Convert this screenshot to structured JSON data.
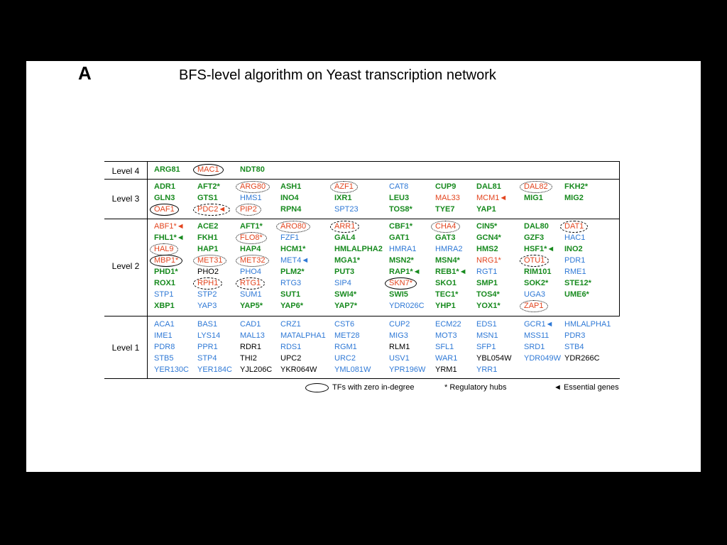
{
  "figure": {
    "panel_letter": "A",
    "title": "BFS-level algorithm on Yeast transcription network"
  },
  "levels": [
    {
      "label": "Level 4",
      "genes": [
        {
          "name": "ARG81",
          "c": "g",
          "r": 0,
          "col": 0
        },
        {
          "name": "MAC1",
          "c": "r",
          "r": 0,
          "col": 1,
          "ring": "solid"
        },
        {
          "name": "NDT80",
          "c": "g",
          "r": 0,
          "col": 2
        }
      ]
    },
    {
      "label": "Level 3",
      "genes": [
        {
          "name": "ADR1",
          "c": "g",
          "r": 0,
          "col": 0
        },
        {
          "name": "AFT2*",
          "c": "g",
          "r": 0,
          "col": 1
        },
        {
          "name": "ARG80",
          "c": "r",
          "r": 0,
          "col": 2,
          "ring": "dot"
        },
        {
          "name": "ASH1",
          "c": "g",
          "r": 0,
          "col": 3
        },
        {
          "name": "AZF1",
          "c": "r",
          "r": 0,
          "col": 4,
          "ring": "dot"
        },
        {
          "name": "CAT8",
          "c": "b",
          "r": 0,
          "col": 5
        },
        {
          "name": "CUP9",
          "c": "g",
          "r": 0,
          "col": 6
        },
        {
          "name": "DAL81",
          "c": "g",
          "r": 0,
          "col": 7
        },
        {
          "name": "DAL82",
          "c": "r",
          "r": 0,
          "col": 8,
          "ring": "dot"
        },
        {
          "name": "FKH2*",
          "c": "g",
          "r": 0,
          "col": 9
        },
        {
          "name": "GLN3",
          "c": "g",
          "r": 1,
          "col": 0
        },
        {
          "name": "GTS1",
          "c": "g",
          "r": 1,
          "col": 1
        },
        {
          "name": "HMS1",
          "c": "b",
          "r": 1,
          "col": 2
        },
        {
          "name": "INO4",
          "c": "g",
          "r": 1,
          "col": 3
        },
        {
          "name": "IXR1",
          "c": "g",
          "r": 1,
          "col": 4
        },
        {
          "name": "LEU3",
          "c": "g",
          "r": 1,
          "col": 5
        },
        {
          "name": "MAL33",
          "c": "r",
          "r": 1,
          "col": 6
        },
        {
          "name": "MCM1◄",
          "c": "r",
          "r": 1,
          "col": 7
        },
        {
          "name": "MIG1",
          "c": "g",
          "r": 1,
          "col": 8
        },
        {
          "name": "MIG2",
          "c": "g",
          "r": 1,
          "col": 9
        },
        {
          "name": "OAF1",
          "c": "r",
          "r": 2,
          "col": 0,
          "ring": "solid"
        },
        {
          "name": "PDC2◄",
          "c": "r",
          "r": 2,
          "col": 1,
          "ring": "dash"
        },
        {
          "name": "PIP2",
          "c": "r",
          "r": 2,
          "col": 2,
          "ring": "dot"
        },
        {
          "name": "RPN4",
          "c": "g",
          "r": 2,
          "col": 3
        },
        {
          "name": "SPT23",
          "c": "b",
          "r": 2,
          "col": 4
        },
        {
          "name": "TOS8*",
          "c": "g",
          "r": 2,
          "col": 5
        },
        {
          "name": "TYE7",
          "c": "g",
          "r": 2,
          "col": 6
        },
        {
          "name": "YAP1",
          "c": "g",
          "r": 2,
          "col": 7
        }
      ]
    },
    {
      "label": "Level 2",
      "genes": [
        {
          "name": "ABF1*◄",
          "c": "r",
          "r": 0,
          "col": 0
        },
        {
          "name": "ACE2",
          "c": "g",
          "r": 0,
          "col": 1
        },
        {
          "name": "AFT1*",
          "c": "g",
          "r": 0,
          "col": 2
        },
        {
          "name": "ARO80",
          "c": "r",
          "r": 0,
          "col": 3,
          "ring": "dot"
        },
        {
          "name": "ARR1",
          "c": "r",
          "r": 0,
          "col": 4,
          "ring": "dash"
        },
        {
          "name": "CBF1*",
          "c": "g",
          "r": 0,
          "col": 5
        },
        {
          "name": "CHA4",
          "c": "r",
          "r": 0,
          "col": 6,
          "ring": "dot"
        },
        {
          "name": "CIN5*",
          "c": "g",
          "r": 0,
          "col": 7
        },
        {
          "name": "DAL80",
          "c": "g",
          "r": 0,
          "col": 8
        },
        {
          "name": "DAT1",
          "c": "r",
          "r": 0,
          "col": 9,
          "ring": "dash"
        },
        {
          "name": "FHL1*◄",
          "c": "g",
          "r": 1,
          "col": 0
        },
        {
          "name": "FKH1",
          "c": "g",
          "r": 1,
          "col": 1
        },
        {
          "name": "FLO8*",
          "c": "r",
          "r": 1,
          "col": 2,
          "ring": "dot"
        },
        {
          "name": "FZF1",
          "c": "b",
          "r": 1,
          "col": 3
        },
        {
          "name": "GAL4",
          "c": "g",
          "r": 1,
          "col": 4
        },
        {
          "name": "GAT1",
          "c": "g",
          "r": 1,
          "col": 5
        },
        {
          "name": "GAT3",
          "c": "g",
          "r": 1,
          "col": 6
        },
        {
          "name": "GCN4*",
          "c": "g",
          "r": 1,
          "col": 7
        },
        {
          "name": "GZF3",
          "c": "g",
          "r": 1,
          "col": 8
        },
        {
          "name": "HAC1",
          "c": "b",
          "r": 1,
          "col": 9
        },
        {
          "name": "HAL9",
          "c": "r",
          "r": 2,
          "col": 0,
          "ring": "dot"
        },
        {
          "name": "HAP1",
          "c": "g",
          "r": 2,
          "col": 1
        },
        {
          "name": "HAP4",
          "c": "g",
          "r": 2,
          "col": 2
        },
        {
          "name": "HCM1*",
          "c": "g",
          "r": 2,
          "col": 3
        },
        {
          "name": "HMLALPHA2",
          "c": "g",
          "r": 2,
          "col": 4
        },
        {
          "name": "HMRA1",
          "c": "b",
          "r": 2,
          "col": 5
        },
        {
          "name": "HMRA2",
          "c": "b",
          "r": 2,
          "col": 6
        },
        {
          "name": "HMS2",
          "c": "g",
          "r": 2,
          "col": 7
        },
        {
          "name": "HSF1*◄",
          "c": "g",
          "r": 2,
          "col": 8
        },
        {
          "name": "INO2",
          "c": "g",
          "r": 2,
          "col": 9
        },
        {
          "name": "MBP1*",
          "c": "r",
          "r": 3,
          "col": 0,
          "ring": "solid"
        },
        {
          "name": "MET31",
          "c": "r",
          "r": 3,
          "col": 1,
          "ring": "dot"
        },
        {
          "name": "MET32",
          "c": "r",
          "r": 3,
          "col": 2,
          "ring": "dot"
        },
        {
          "name": "MET4◄",
          "c": "b",
          "r": 3,
          "col": 3
        },
        {
          "name": "MGA1*",
          "c": "g",
          "r": 3,
          "col": 4
        },
        {
          "name": "MSN2*",
          "c": "g",
          "r": 3,
          "col": 5
        },
        {
          "name": "MSN4*",
          "c": "g",
          "r": 3,
          "col": 6
        },
        {
          "name": "NRG1*",
          "c": "r",
          "r": 3,
          "col": 7
        },
        {
          "name": "OTU1",
          "c": "r",
          "r": 3,
          "col": 8,
          "ring": "dash"
        },
        {
          "name": "PDR1",
          "c": "b",
          "r": 3,
          "col": 9
        },
        {
          "name": "PHD1*",
          "c": "g",
          "r": 4,
          "col": 0
        },
        {
          "name": "PHO2",
          "c": "k",
          "r": 4,
          "col": 1
        },
        {
          "name": "PHO4",
          "c": "b",
          "r": 4,
          "col": 2
        },
        {
          "name": "PLM2*",
          "c": "g",
          "r": 4,
          "col": 3
        },
        {
          "name": "PUT3",
          "c": "g",
          "r": 4,
          "col": 4
        },
        {
          "name": "RAP1*◄",
          "c": "g",
          "r": 4,
          "col": 5
        },
        {
          "name": "REB1*◄",
          "c": "g",
          "r": 4,
          "col": 6
        },
        {
          "name": "RGT1",
          "c": "b",
          "r": 4,
          "col": 7
        },
        {
          "name": "RIM101",
          "c": "g",
          "r": 4,
          "col": 8
        },
        {
          "name": "RME1",
          "c": "b",
          "r": 4,
          "col": 9
        },
        {
          "name": "ROX1",
          "c": "g",
          "r": 5,
          "col": 0
        },
        {
          "name": "RPH1",
          "c": "r",
          "r": 5,
          "col": 1,
          "ring": "dash"
        },
        {
          "name": "RTG1",
          "c": "r",
          "r": 5,
          "col": 2,
          "ring": "dash"
        },
        {
          "name": "RTG3",
          "c": "b",
          "r": 5,
          "col": 3
        },
        {
          "name": "SIP4",
          "c": "b",
          "r": 5,
          "col": 4
        },
        {
          "name": "SKN7*",
          "c": "r",
          "r": 5,
          "col": 5,
          "ring": "solid"
        },
        {
          "name": "SKO1",
          "c": "g",
          "r": 5,
          "col": 6
        },
        {
          "name": "SMP1",
          "c": "g",
          "r": 5,
          "col": 7
        },
        {
          "name": "SOK2*",
          "c": "g",
          "r": 5,
          "col": 8
        },
        {
          "name": "STE12*",
          "c": "g",
          "r": 5,
          "col": 9
        },
        {
          "name": "STP1",
          "c": "b",
          "r": 6,
          "col": 0
        },
        {
          "name": "STP2",
          "c": "b",
          "r": 6,
          "col": 1
        },
        {
          "name": "SUM1",
          "c": "b",
          "r": 6,
          "col": 2
        },
        {
          "name": "SUT1",
          "c": "g",
          "r": 6,
          "col": 3
        },
        {
          "name": "SWI4*",
          "c": "g",
          "r": 6,
          "col": 4
        },
        {
          "name": "SWI5",
          "c": "g",
          "r": 6,
          "col": 5
        },
        {
          "name": "TEC1*",
          "c": "g",
          "r": 6,
          "col": 6
        },
        {
          "name": "TOS4*",
          "c": "g",
          "r": 6,
          "col": 7
        },
        {
          "name": "UGA3",
          "c": "b",
          "r": 6,
          "col": 8
        },
        {
          "name": "UME6*",
          "c": "g",
          "r": 6,
          "col": 9
        },
        {
          "name": "XBP1",
          "c": "g",
          "r": 7,
          "col": 0
        },
        {
          "name": "YAP3",
          "c": "b",
          "r": 7,
          "col": 1
        },
        {
          "name": "YAP5*",
          "c": "g",
          "r": 7,
          "col": 2
        },
        {
          "name": "YAP6*",
          "c": "g",
          "r": 7,
          "col": 3
        },
        {
          "name": "YAP7*",
          "c": "g",
          "r": 7,
          "col": 4
        },
        {
          "name": "YDR026C",
          "c": "b",
          "r": 7,
          "col": 5
        },
        {
          "name": "YHP1",
          "c": "g",
          "r": 7,
          "col": 6
        },
        {
          "name": "YOX1*",
          "c": "g",
          "r": 7,
          "col": 7
        },
        {
          "name": "ZAP1",
          "c": "r",
          "r": 7,
          "col": 8,
          "ring": "dot"
        }
      ]
    },
    {
      "label": "Level 1",
      "genes": [
        {
          "name": "ACA1",
          "c": "b",
          "r": 0,
          "col": 0
        },
        {
          "name": "BAS1",
          "c": "b",
          "r": 0,
          "col": 1
        },
        {
          "name": "CAD1",
          "c": "b",
          "r": 0,
          "col": 2
        },
        {
          "name": "CRZ1",
          "c": "b",
          "r": 0,
          "col": 3
        },
        {
          "name": "CST6",
          "c": "b",
          "r": 0,
          "col": 4
        },
        {
          "name": "CUP2",
          "c": "b",
          "r": 0,
          "col": 5
        },
        {
          "name": "ECM22",
          "c": "b",
          "r": 0,
          "col": 6
        },
        {
          "name": "EDS1",
          "c": "b",
          "r": 0,
          "col": 7
        },
        {
          "name": "GCR1◄",
          "c": "b",
          "r": 0,
          "col": 8
        },
        {
          "name": "HMLALPHA1",
          "c": "b",
          "r": 0,
          "col": 9
        },
        {
          "name": "IME1",
          "c": "b",
          "r": 1,
          "col": 0
        },
        {
          "name": "LYS14",
          "c": "b",
          "r": 1,
          "col": 1
        },
        {
          "name": "MAL13",
          "c": "b",
          "r": 1,
          "col": 2
        },
        {
          "name": "MATALPHA1",
          "c": "b",
          "r": 1,
          "col": 3
        },
        {
          "name": "MET28",
          "c": "b",
          "r": 1,
          "col": 4
        },
        {
          "name": "MIG3",
          "c": "b",
          "r": 1,
          "col": 5
        },
        {
          "name": "MOT3",
          "c": "b",
          "r": 1,
          "col": 6
        },
        {
          "name": "MSN1",
          "c": "b",
          "r": 1,
          "col": 7
        },
        {
          "name": "MSS11",
          "c": "b",
          "r": 1,
          "col": 8
        },
        {
          "name": "PDR3",
          "c": "b",
          "r": 1,
          "col": 9
        },
        {
          "name": "PDR8",
          "c": "b",
          "r": 2,
          "col": 0
        },
        {
          "name": "PPR1",
          "c": "b",
          "r": 2,
          "col": 1
        },
        {
          "name": "RDR1",
          "c": "k",
          "r": 2,
          "col": 2
        },
        {
          "name": "RDS1",
          "c": "b",
          "r": 2,
          "col": 3
        },
        {
          "name": "RGM1",
          "c": "b",
          "r": 2,
          "col": 4
        },
        {
          "name": "RLM1",
          "c": "k",
          "r": 2,
          "col": 5
        },
        {
          "name": "SFL1",
          "c": "b",
          "r": 2,
          "col": 6
        },
        {
          "name": "SFP1",
          "c": "b",
          "r": 2,
          "col": 7
        },
        {
          "name": "SRD1",
          "c": "b",
          "r": 2,
          "col": 8
        },
        {
          "name": "STB4",
          "c": "b",
          "r": 2,
          "col": 9
        },
        {
          "name": "STB5",
          "c": "b",
          "r": 3,
          "col": 0
        },
        {
          "name": "STP4",
          "c": "b",
          "r": 3,
          "col": 1
        },
        {
          "name": "THI2",
          "c": "k",
          "r": 3,
          "col": 2
        },
        {
          "name": "UPC2",
          "c": "k",
          "r": 3,
          "col": 3
        },
        {
          "name": "URC2",
          "c": "b",
          "r": 3,
          "col": 4
        },
        {
          "name": "USV1",
          "c": "b",
          "r": 3,
          "col": 5
        },
        {
          "name": "WAR1",
          "c": "b",
          "r": 3,
          "col": 6
        },
        {
          "name": "YBL054W",
          "c": "k",
          "r": 3,
          "col": 7
        },
        {
          "name": "YDR049W",
          "c": "b",
          "r": 3,
          "col": 8
        },
        {
          "name": "YDR266C",
          "c": "k",
          "r": 3,
          "col": 9
        },
        {
          "name": "YER130C",
          "c": "b",
          "r": 4,
          "col": 0
        },
        {
          "name": "YER184C",
          "c": "b",
          "r": 4,
          "col": 1
        },
        {
          "name": "YJL206C",
          "c": "k",
          "r": 4,
          "col": 2
        },
        {
          "name": "YKR064W",
          "c": "k",
          "r": 4,
          "col": 3
        },
        {
          "name": "YML081W",
          "c": "b",
          "r": 4,
          "col": 4
        },
        {
          "name": "YPR196W",
          "c": "b",
          "r": 4,
          "col": 5
        },
        {
          "name": "YRM1",
          "c": "k",
          "r": 4,
          "col": 6
        },
        {
          "name": "YRR1",
          "c": "b",
          "r": 4,
          "col": 7
        }
      ]
    }
  ],
  "legend": {
    "zero_in_degree": "TFs with zero in-degree",
    "hubs": "* Regulatory hubs",
    "essential": "◄ Essential genes"
  },
  "colors": {
    "green": "#178a1e",
    "blue": "#2f79d6",
    "red": "#e3451f",
    "black": "#000000"
  }
}
